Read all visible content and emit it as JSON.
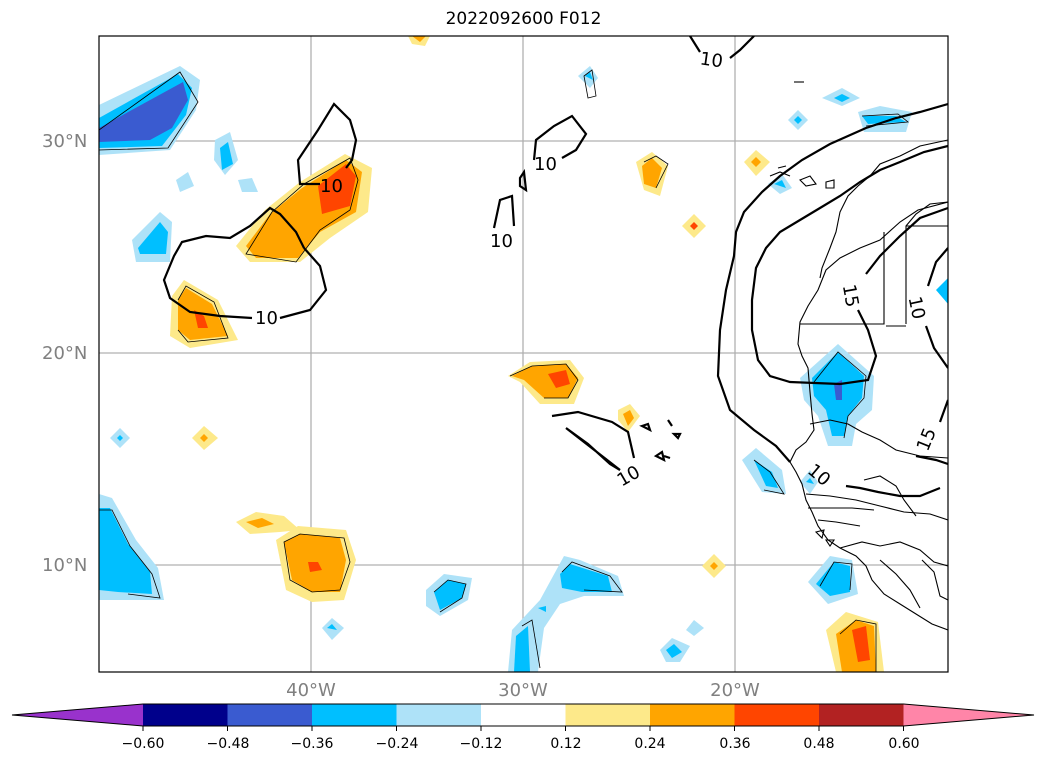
{
  "title": "2022092600 F012",
  "axes": {
    "lat_ticks": [
      "30°N",
      "20°N",
      "10°N"
    ],
    "lon_ticks": [
      "40°W",
      "30°W",
      "20°W"
    ],
    "grid": true
  },
  "contour_labels": [
    "10",
    "10",
    "10",
    "10",
    "10",
    "10",
    "10",
    "15",
    "10",
    "15"
  ],
  "colorbar": {
    "levels": [
      "−0.60",
      "−0.48",
      "−0.36",
      "−0.24",
      "−0.12",
      "0.12",
      "0.24",
      "0.36",
      "0.48",
      "0.60"
    ],
    "colors": [
      "#9932cc",
      "#00008b",
      "#3a5bd0",
      "#00bfff",
      "#aee2f8",
      "#ffffff",
      "#fde98a",
      "#ffa500",
      "#ff4500",
      "#b22222",
      "#ff85a8"
    ],
    "extend": "both"
  },
  "colors": {
    "coastline": "#000000",
    "contour": "#000000",
    "grid": "#b0b0b0",
    "tick_label": "#808080"
  }
}
